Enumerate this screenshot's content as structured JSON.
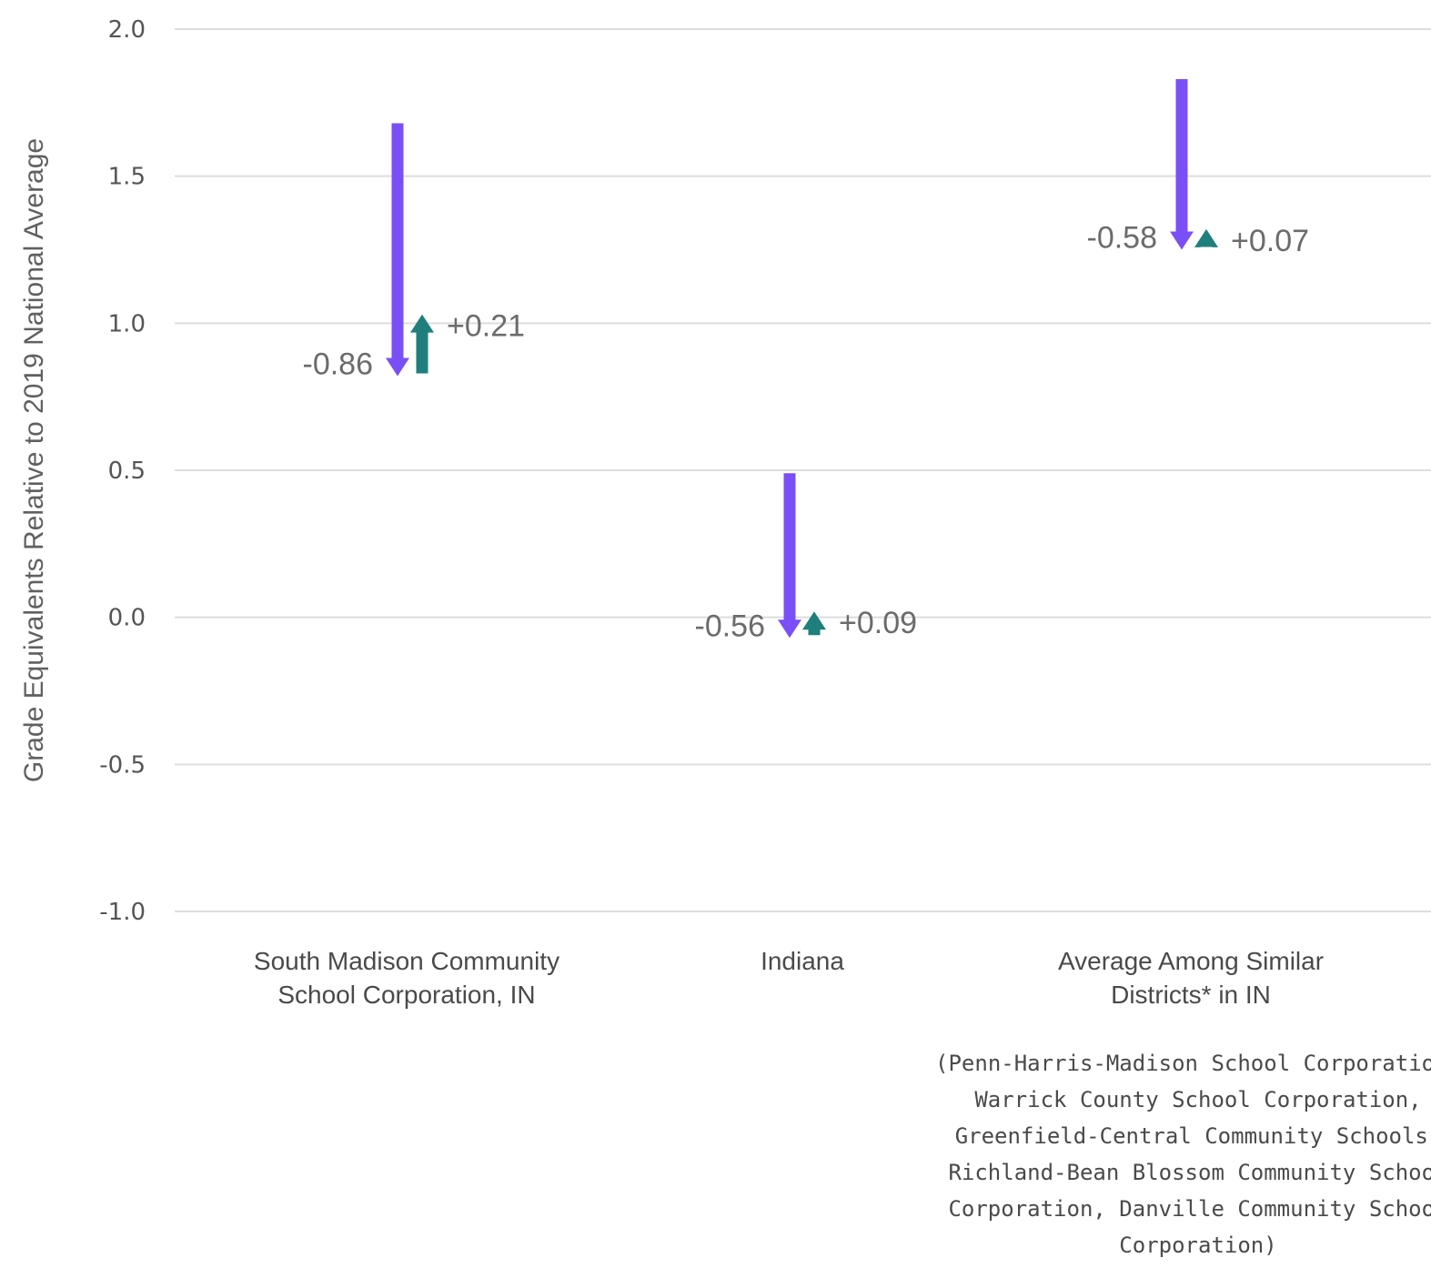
{
  "chart_data": {
    "type": "bar",
    "title": "",
    "ylabel": "Grade Equivalents Relative to 2019 National Average",
    "xlabel": "",
    "ylim": [
      -1.0,
      2.0
    ],
    "yticks": [
      "2.0",
      "1.5",
      "1.0",
      "0.5",
      "0.0",
      "-0.5",
      "-1.0"
    ],
    "grid": true,
    "categories": [
      {
        "lines": [
          "South Madison Community",
          "School Corporation, IN"
        ],
        "start": 1.68,
        "decline": -0.86,
        "decline_label": "-0.86",
        "recovery": 0.21,
        "recovery_label": "+0.21"
      },
      {
        "lines": [
          "Indiana"
        ],
        "start": 0.49,
        "decline": -0.56,
        "decline_label": "-0.56",
        "recovery": 0.09,
        "recovery_label": "+0.09"
      },
      {
        "lines": [
          "Average Among Similar",
          "Districts* in IN"
        ],
        "start": 1.83,
        "decline": -0.58,
        "decline_label": "-0.58",
        "recovery": 0.07,
        "recovery_label": "+0.07"
      }
    ],
    "note_lines": [
      "(Penn-Harris-Madison School Corporation,",
      "Warrick County School Corporation,",
      "Greenfield-Central Community Schools,",
      "Richland-Bean Blossom Community School",
      "Corporation, Danville Community School",
      "Corporation)"
    ],
    "colors": {
      "decline": "#7b4ff7",
      "recovery": "#1f7f7c",
      "grid": "#dddddd"
    }
  }
}
